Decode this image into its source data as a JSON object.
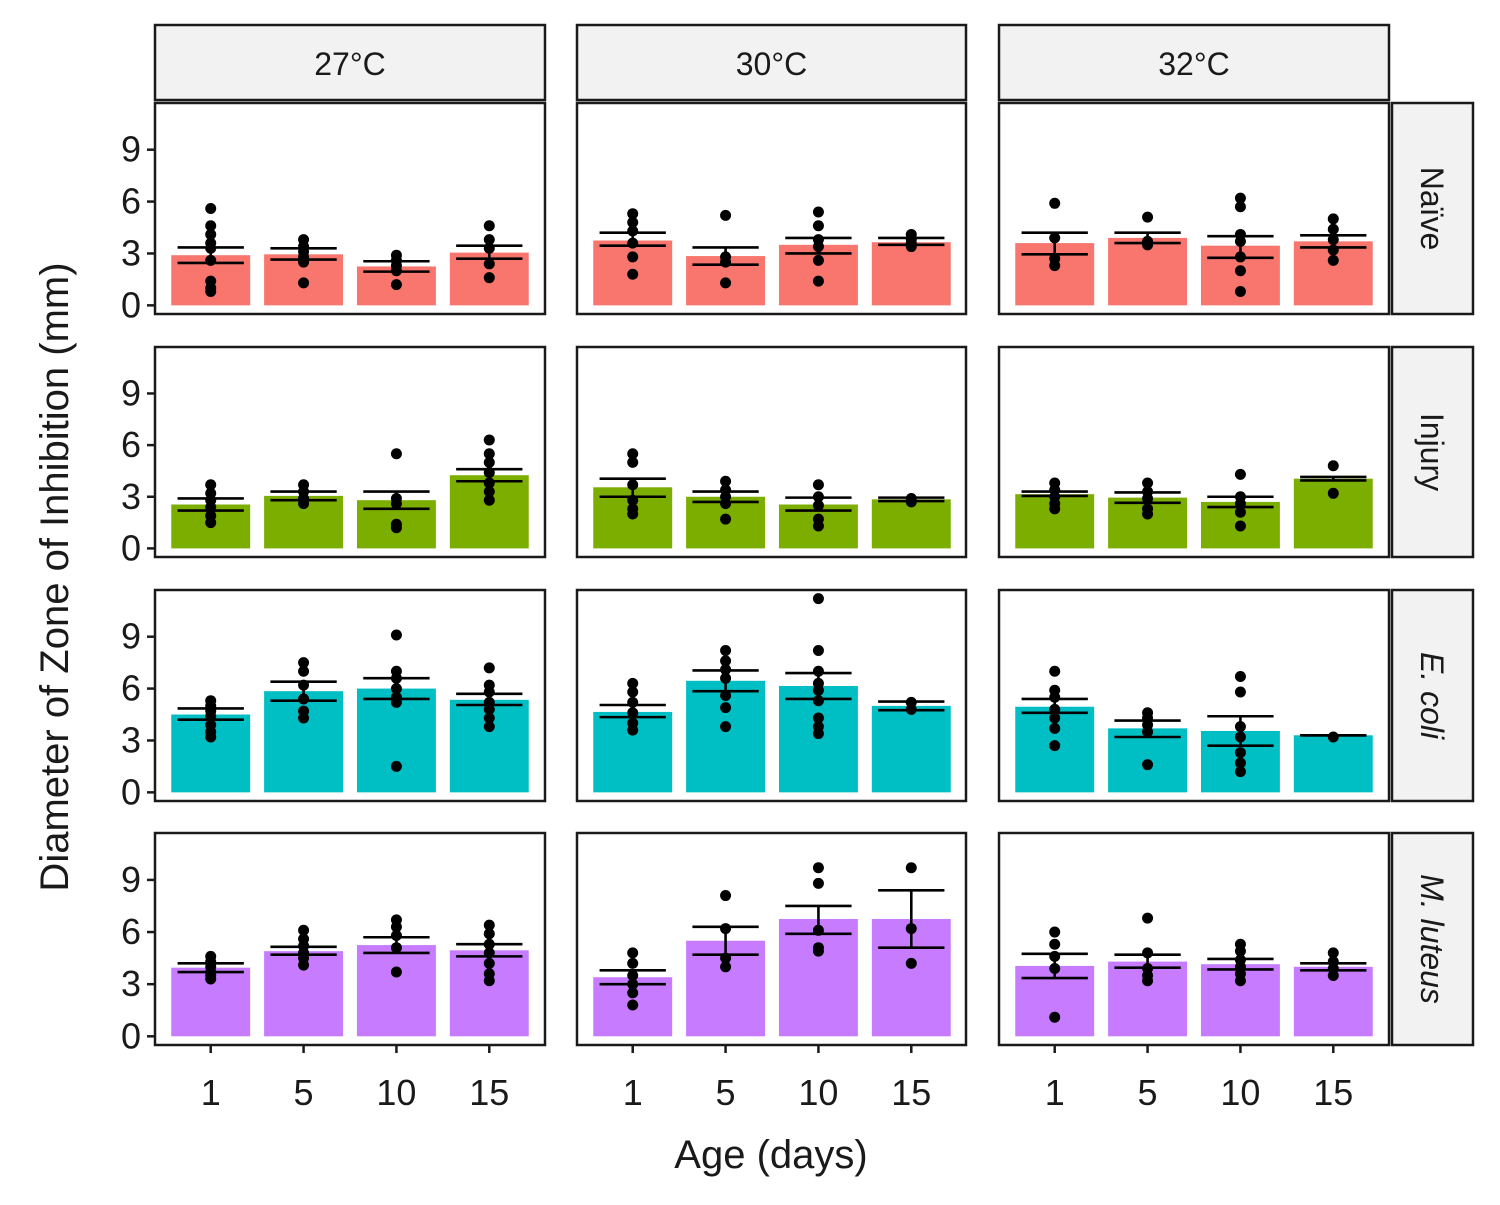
{
  "chart_data": {
    "type": "bar",
    "xlabel": "Age (days)",
    "ylabel": "Diameter of Zone of Inhibition (mm)",
    "categories": [
      "1",
      "5",
      "10",
      "15"
    ],
    "ylim": [
      -0.5,
      11.7
    ],
    "yticks": [
      0,
      3,
      6,
      9
    ],
    "grid": false,
    "legend": "none",
    "columns": [
      "27°C",
      "30°C",
      "32°C"
    ],
    "rows": [
      {
        "label": "Naïve",
        "italic": false,
        "color": "#F8766D"
      },
      {
        "label": "Injury",
        "italic": false,
        "color": "#7CAE00"
      },
      {
        "label": "E. coli",
        "italic": true,
        "color": "#00BFC4"
      },
      {
        "label": "M. luteus",
        "italic": true,
        "color": "#C77CFF"
      }
    ],
    "panels": [
      [
        {
          "bars": [
            2.9,
            2.95,
            2.25,
            3.05
          ],
          "err": [
            [
              2.45,
              3.35
            ],
            [
              2.65,
              3.3
            ],
            [
              1.95,
              2.55
            ],
            [
              2.7,
              3.45
            ]
          ],
          "points": [
            [
              5.6,
              4.6,
              4.1,
              3.6,
              3.3,
              2.6,
              1.4,
              1.0,
              0.8
            ],
            [
              3.8,
              3.4,
              3.1,
              2.8,
              2.5,
              1.3
            ],
            [
              2.9,
              2.6,
              2.3,
              2.0,
              1.2
            ],
            [
              4.6,
              3.8,
              3.3,
              2.4,
              1.6
            ]
          ]
        },
        {
          "bars": [
            3.75,
            2.85,
            3.5,
            3.65
          ],
          "err": [
            [
              3.45,
              4.2
            ],
            [
              2.35,
              3.35
            ],
            [
              3.0,
              3.9
            ],
            [
              3.5,
              3.9
            ]
          ],
          "points": [
            [
              5.3,
              4.8,
              4.3,
              3.6,
              2.8,
              1.8
            ],
            [
              5.2,
              2.8,
              2.5,
              1.3
            ],
            [
              5.4,
              4.6,
              3.8,
              3.4,
              2.6,
              1.4
            ],
            [
              4.1,
              3.8,
              3.6,
              3.4
            ]
          ]
        },
        {
          "bars": [
            3.6,
            3.9,
            3.45,
            3.7
          ],
          "err": [
            [
              2.95,
              4.2
            ],
            [
              3.6,
              4.2
            ],
            [
              2.75,
              4.0
            ],
            [
              3.35,
              4.05
            ]
          ],
          "points": [
            [
              5.9,
              3.9,
              2.7,
              2.3
            ],
            [
              5.1,
              3.7,
              3.5
            ],
            [
              6.2,
              5.7,
              4.1,
              3.7,
              2.8,
              2.0,
              0.8
            ],
            [
              5.0,
              4.4,
              3.8,
              3.2,
              2.6
            ]
          ]
        }
      ],
      [
        {
          "bars": [
            2.55,
            3.05,
            2.8,
            4.25
          ],
          "err": [
            [
              2.2,
              2.9
            ],
            [
              2.8,
              3.3
            ],
            [
              2.3,
              3.3
            ],
            [
              3.9,
              4.6
            ]
          ],
          "points": [
            [
              3.7,
              3.2,
              2.8,
              2.4,
              1.9,
              1.5
            ],
            [
              3.7,
              3.3,
              2.9,
              2.6
            ],
            [
              5.5,
              2.9,
              2.6,
              1.4,
              1.2
            ],
            [
              6.3,
              5.5,
              5.0,
              4.4,
              3.8,
              3.3,
              2.8
            ]
          ]
        },
        {
          "bars": [
            3.55,
            3.0,
            2.55,
            2.85
          ],
          "err": [
            [
              3.0,
              4.05
            ],
            [
              2.7,
              3.3
            ],
            [
              2.2,
              2.95
            ],
            [
              2.75,
              2.95
            ]
          ],
          "points": [
            [
              5.5,
              5.0,
              3.7,
              2.8,
              2.3,
              2.0
            ],
            [
              3.9,
              3.4,
              3.0,
              2.6,
              1.7
            ],
            [
              3.7,
              3.0,
              2.5,
              1.7,
              1.3
            ],
            [
              2.9,
              2.7
            ]
          ]
        },
        {
          "bars": [
            3.15,
            2.95,
            2.7,
            4.05
          ],
          "err": [
            [
              3.05,
              3.3
            ],
            [
              2.65,
              3.25
            ],
            [
              2.4,
              3.0
            ],
            [
              3.95,
              4.15
            ]
          ],
          "points": [
            [
              3.8,
              3.4,
              3.0,
              2.6,
              2.3
            ],
            [
              3.8,
              3.3,
              2.9,
              2.3,
              2.0
            ],
            [
              4.3,
              3.0,
              2.6,
              2.1,
              1.3
            ],
            [
              4.8,
              3.2
            ]
          ]
        }
      ],
      [
        {
          "bars": [
            4.5,
            5.85,
            6.0,
            5.35
          ],
          "err": [
            [
              4.2,
              4.85
            ],
            [
              5.3,
              6.4
            ],
            [
              5.4,
              6.6
            ],
            [
              5.05,
              5.7
            ]
          ],
          "points": [
            [
              5.3,
              5.0,
              4.7,
              4.4,
              3.9,
              3.5,
              3.2
            ],
            [
              7.5,
              7.0,
              6.2,
              5.4,
              4.7,
              4.3
            ],
            [
              9.1,
              7.0,
              6.6,
              6.0,
              5.5,
              5.2,
              1.5
            ],
            [
              7.2,
              6.2,
              5.8,
              5.2,
              4.8,
              4.3,
              3.8
            ]
          ]
        },
        {
          "bars": [
            4.65,
            6.45,
            6.15,
            5.0
          ],
          "err": [
            [
              4.35,
              5.05
            ],
            [
              5.85,
              7.05
            ],
            [
              5.4,
              6.9
            ],
            [
              4.75,
              5.25
            ]
          ],
          "points": [
            [
              6.3,
              5.8,
              5.2,
              4.6,
              4.0,
              3.6
            ],
            [
              8.2,
              7.6,
              7.1,
              6.6,
              5.6,
              4.9,
              3.8
            ],
            [
              11.2,
              8.2,
              7.0,
              6.3,
              5.9,
              5.3,
              4.3,
              3.8,
              3.4
            ],
            [
              5.2,
              4.8
            ]
          ]
        },
        {
          "bars": [
            4.95,
            3.7,
            3.55,
            3.3
          ],
          "err": [
            [
              4.6,
              5.4
            ],
            [
              3.2,
              4.15
            ],
            [
              2.7,
              4.4
            ],
            [
              3.3,
              3.3
            ]
          ],
          "points": [
            [
              7.0,
              5.9,
              5.5,
              4.8,
              4.3,
              3.7,
              2.7
            ],
            [
              4.6,
              4.3,
              3.9,
              3.5,
              1.6
            ],
            [
              6.7,
              5.8,
              3.8,
              3.2,
              2.3,
              1.7,
              1.2
            ],
            [
              3.2
            ]
          ]
        }
      ],
      [
        {
          "bars": [
            3.95,
            4.9,
            5.25,
            4.95
          ],
          "err": [
            [
              3.7,
              4.2
            ],
            [
              4.7,
              5.15
            ],
            [
              4.8,
              5.7
            ],
            [
              4.6,
              5.3
            ]
          ],
          "points": [
            [
              4.6,
              4.3,
              4.0,
              3.7,
              3.5,
              3.3
            ],
            [
              6.1,
              5.6,
              5.2,
              4.8,
              4.5,
              4.1
            ],
            [
              6.7,
              6.3,
              5.8,
              5.1,
              3.7
            ],
            [
              6.4,
              5.9,
              5.3,
              4.8,
              4.2,
              3.6,
              3.2
            ]
          ]
        },
        {
          "bars": [
            3.4,
            5.5,
            6.75,
            6.75
          ],
          "err": [
            [
              3.0,
              3.8
            ],
            [
              4.7,
              6.3
            ],
            [
              5.9,
              7.5
            ],
            [
              5.1,
              8.4
            ]
          ],
          "points": [
            [
              4.8,
              4.2,
              3.5,
              3.0,
              2.5,
              1.8
            ],
            [
              8.1,
              6.2,
              4.5,
              4.0
            ],
            [
              9.7,
              8.8,
              6.1,
              5.1,
              4.9
            ],
            [
              9.7,
              6.2,
              4.2
            ]
          ]
        },
        {
          "bars": [
            4.05,
            4.3,
            4.15,
            4.0
          ],
          "err": [
            [
              3.35,
              4.75
            ],
            [
              3.95,
              4.7
            ],
            [
              3.85,
              4.45
            ],
            [
              3.8,
              4.2
            ]
          ],
          "points": [
            [
              6.0,
              5.3,
              4.6,
              3.9,
              1.1
            ],
            [
              6.8,
              4.8,
              3.9,
              3.5,
              3.2
            ],
            [
              5.3,
              4.9,
              4.4,
              4.0,
              3.6,
              3.2
            ],
            [
              4.8,
              4.3,
              3.9,
              3.5
            ]
          ]
        }
      ]
    ]
  }
}
